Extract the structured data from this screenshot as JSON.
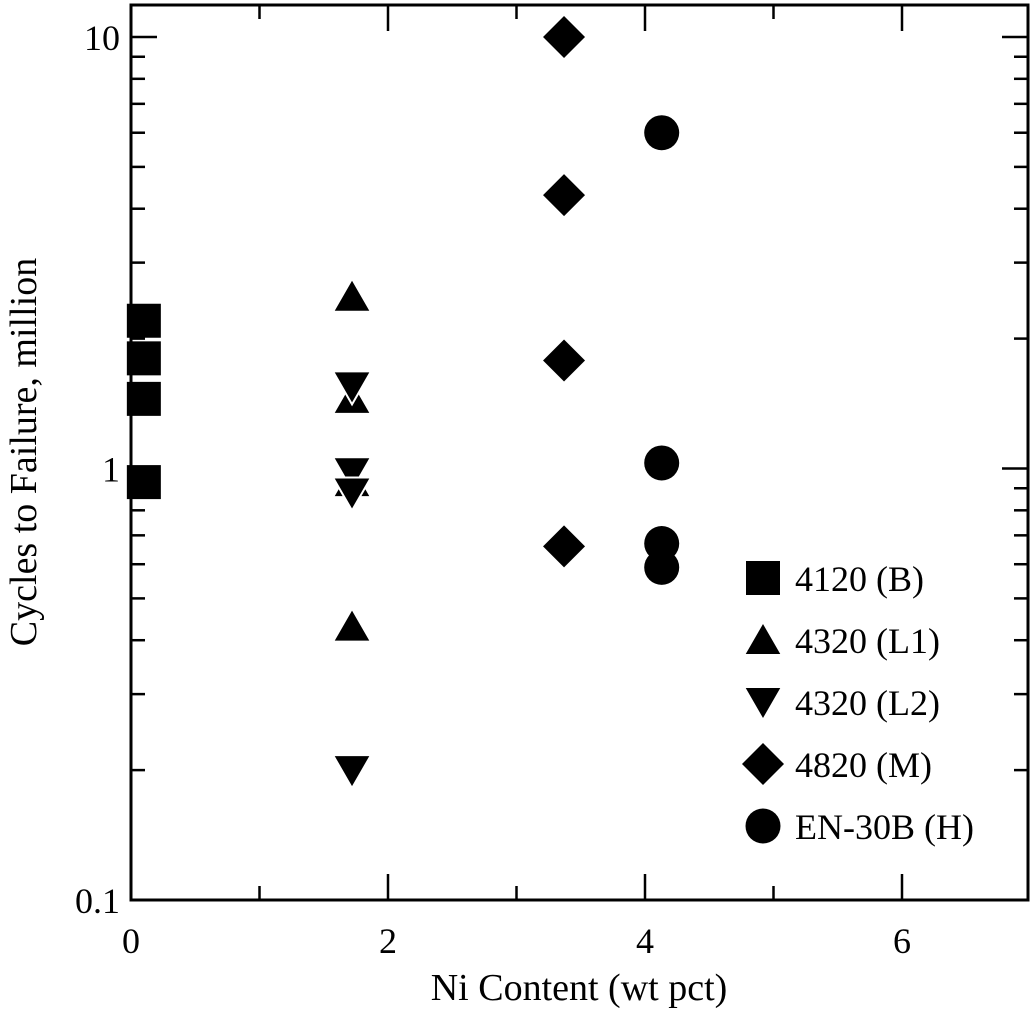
{
  "chart_data": {
    "type": "scatter",
    "xlabel": "Ni Content (wt pct)",
    "ylabel": "Cycles to Failure, million",
    "xlim": [
      0,
      7
    ],
    "ylim": [
      0.1,
      10
    ],
    "y_scale": "log",
    "x_ticks": [
      0,
      2,
      4,
      6
    ],
    "x_tick_labels": [
      "0",
      "2",
      "4",
      "6"
    ],
    "y_ticks": [
      0.1,
      1,
      10
    ],
    "y_tick_labels": [
      "0.1",
      "1",
      "10"
    ],
    "grid": false,
    "legend_position": "bottom-right",
    "series": [
      {
        "name": "4120 (B)",
        "marker": "square",
        "color": "#000000",
        "x": [
          0.1,
          0.1,
          0.1,
          0.1
        ],
        "y": [
          2.2,
          1.8,
          1.45,
          0.93
        ]
      },
      {
        "name": "4320 (L1)",
        "marker": "triangle-up",
        "color": "#000000",
        "x": [
          1.72,
          1.72,
          1.72,
          1.72
        ],
        "y": [
          2.5,
          1.45,
          0.93,
          0.43
        ]
      },
      {
        "name": "4320 (L2)",
        "marker": "triangle-down",
        "color": "#000000",
        "x": [
          1.72,
          1.72,
          1.72,
          1.72
        ],
        "y": [
          1.55,
          0.98,
          0.88,
          0.2
        ]
      },
      {
        "name": "4820 (M)",
        "marker": "diamond",
        "color": "#000000",
        "x": [
          3.37,
          3.37,
          3.37,
          3.37
        ],
        "y": [
          10,
          4.3,
          1.78,
          0.66
        ]
      },
      {
        "name": "EN-30B (H)",
        "marker": "circle",
        "color": "#000000",
        "x": [
          4.13,
          4.13,
          4.13,
          4.13
        ],
        "y": [
          6.0,
          1.03,
          0.67,
          0.59
        ]
      }
    ]
  }
}
